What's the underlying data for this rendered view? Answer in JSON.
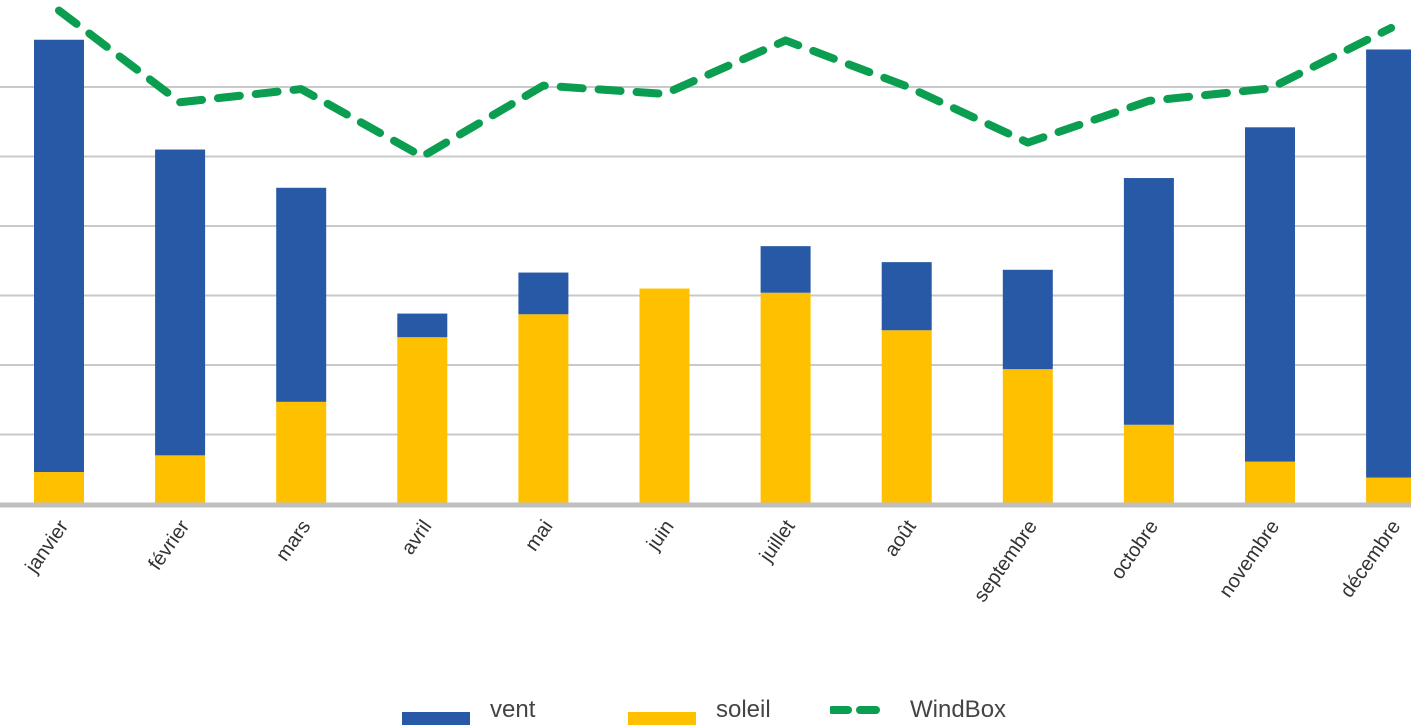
{
  "chart_data": {
    "type": "bar",
    "stacked": true,
    "categories": [
      "janvier",
      "février",
      "mars",
      "avril",
      "mai",
      "juin",
      "juillet",
      "août",
      "septembre",
      "octobre",
      "novembre",
      "décembre"
    ],
    "series": [
      {
        "name": "soleil",
        "kind": "bar",
        "color": "#FFC000",
        "values": [
          0.46,
          0.7,
          1.47,
          2.4,
          2.73,
          3.1,
          3.04,
          2.5,
          1.94,
          1.14,
          0.61,
          0.38
        ]
      },
      {
        "name": "vent",
        "kind": "bar",
        "color": "#2759A6",
        "values": [
          6.22,
          4.4,
          3.08,
          0.34,
          0.6,
          0.0,
          0.67,
          0.98,
          1.43,
          3.55,
          4.81,
          6.16
        ]
      },
      {
        "name": "WindBox",
        "kind": "line",
        "style": "dashed",
        "color": "#0B9E50",
        "values": [
          7.1,
          5.78,
          5.97,
          5.0,
          6.02,
          5.9,
          6.67,
          6.01,
          5.2,
          5.8,
          5.98,
          6.85
        ]
      }
    ],
    "ylim": [
      0,
      7.3
    ],
    "grid": true,
    "gridlines": [
      1,
      2,
      3,
      4,
      5,
      6
    ],
    "y_tick_labels_visible": false,
    "legend": {
      "position": "bottom",
      "items": [
        {
          "label": "vent",
          "color": "#2759A6",
          "kind": "bar"
        },
        {
          "label": "soleil",
          "color": "#FFC000",
          "kind": "bar"
        },
        {
          "label": "WindBox",
          "color": "#0B9E50",
          "kind": "dashed-line"
        }
      ]
    }
  }
}
